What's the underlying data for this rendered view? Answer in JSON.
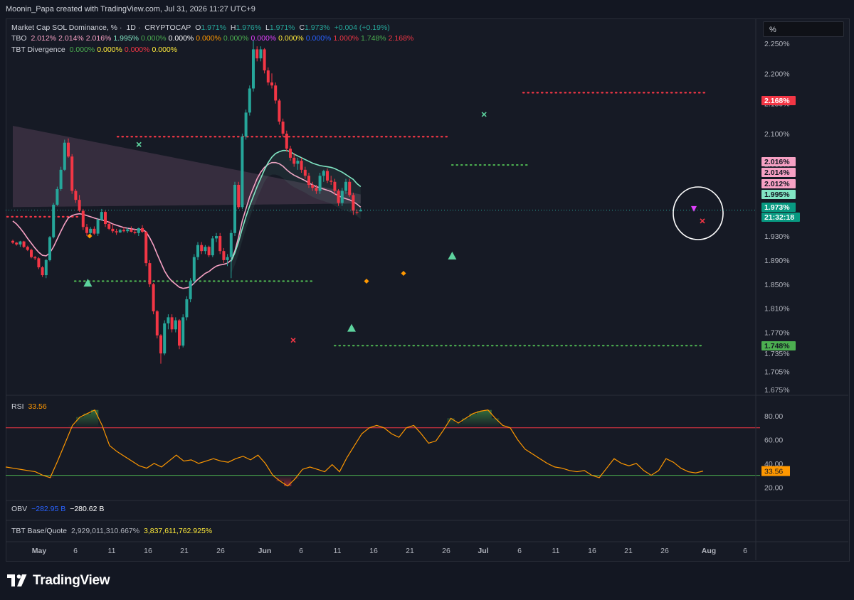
{
  "header": {
    "text": "Moonin_Papa created with TradingView.com, Jul 31, 2026 11:27 UTC+9"
  },
  "legend": {
    "main": {
      "title": "Market Cap SOL Dominance, %",
      "interval": "1D",
      "source": "CRYPTOCAP",
      "o_label": "O",
      "o": "1.971%",
      "h_label": "H",
      "h": "1.976%",
      "l_label": "L",
      "l": "1.971%",
      "c_label": "C",
      "c": "1.973%",
      "change": "+0.004 (+0.19%)"
    },
    "tbo": {
      "name": "TBO",
      "values": [
        {
          "text": "2.012%",
          "color": "#f7a1c4"
        },
        {
          "text": "2.014%",
          "color": "#f7a1c4"
        },
        {
          "text": "2.016%",
          "color": "#f7a1c4"
        },
        {
          "text": "1.995%",
          "color": "#81e6c4"
        },
        {
          "text": "0.000%",
          "color": "#4caf50"
        },
        {
          "text": "0.000%",
          "color": "#ffffff"
        },
        {
          "text": "0.000%",
          "color": "#ff9800"
        },
        {
          "text": "0.000%",
          "color": "#4caf50"
        },
        {
          "text": "0.000%",
          "color": "#e040fb"
        },
        {
          "text": "0.000%",
          "color": "#ffeb3b"
        },
        {
          "text": "0.000%",
          "color": "#2962ff"
        },
        {
          "text": "1.000%",
          "color": "#f23645"
        },
        {
          "text": "1.748%",
          "color": "#4caf50"
        },
        {
          "text": "2.168%",
          "color": "#f23645"
        }
      ]
    },
    "tbt_div": {
      "name": "TBT Divergence",
      "values": [
        {
          "text": "0.000%",
          "color": "#4caf50"
        },
        {
          "text": "0.000%",
          "color": "#ffeb3b"
        },
        {
          "text": "0.000%",
          "color": "#f23645"
        },
        {
          "text": "0.000%",
          "color": "#ffeb3b"
        }
      ]
    },
    "rsi": {
      "name": "RSI",
      "value": "33.56",
      "color": "#ff9800"
    },
    "obv": {
      "name": "OBV",
      "v1": "−282.95 B",
      "v1_color": "#2962ff",
      "v2": "−280.62 B",
      "v2_color": "#ffffff"
    },
    "tbt_bq": {
      "name": "TBT Base/Quote",
      "v1": "2,929,011,310.667%",
      "v1_color": "#b2b5be",
      "v2": "3,837,611,762.925%",
      "v2_color": "#ffeb3b"
    }
  },
  "unit_box": "%",
  "price_axis_ticks": [
    "2.250%",
    "2.200%",
    "2.150%",
    "2.100%",
    "2.050%",
    "1.930%",
    "1.890%",
    "1.850%",
    "1.810%",
    "1.770%",
    "1.735%",
    "1.705%",
    "1.675%"
  ],
  "price_axis_labels": [
    {
      "text": "2.168%",
      "bg": "#f23645",
      "fg": "#ffffff"
    },
    {
      "text": "2.016%",
      "bg": "#f7a1c4",
      "fg": "#131722"
    },
    {
      "text": "2.014%",
      "bg": "#f7a1c4",
      "fg": "#131722"
    },
    {
      "text": "2.012%",
      "bg": "#f7a1c4",
      "fg": "#131722"
    },
    {
      "text": "1.995%",
      "bg": "#81e6c4",
      "fg": "#131722"
    },
    {
      "text": "1.973%",
      "bg": "#089981",
      "fg": "#ffffff"
    },
    {
      "text": "21:32:18",
      "bg": "#089981",
      "fg": "#ffffff"
    },
    {
      "text": "1.748%",
      "bg": "#4caf50",
      "fg": "#131722"
    }
  ],
  "rsi_axis_ticks": [
    "80.00",
    "60.00",
    "40.00",
    "20.00"
  ],
  "rsi_current_label": "33.56",
  "x_axis_ticks": [
    "May",
    "6",
    "11",
    "16",
    "21",
    "26",
    "Jun",
    "6",
    "11",
    "16",
    "21",
    "26",
    "Jul",
    "6",
    "11",
    "16",
    "21",
    "26",
    "Aug",
    "6"
  ],
  "chart_data": [
    {
      "type": "candlestick",
      "title": "Market Cap SOL Dominance, % · 1D · CRYPTOCAP",
      "ylabel": "%",
      "ylim": [
        1.675,
        2.27
      ],
      "ohlc": [
        [
          1.922,
          1.924,
          1.917,
          1.919
        ],
        [
          1.919,
          1.92,
          1.914,
          1.916
        ],
        [
          1.916,
          1.922,
          1.912,
          1.921
        ],
        [
          1.921,
          1.922,
          1.91,
          1.912
        ],
        [
          1.912,
          1.914,
          1.905,
          1.907
        ],
        [
          1.907,
          1.909,
          1.893,
          1.895
        ],
        [
          1.895,
          1.897,
          1.89,
          1.893
        ],
        [
          1.893,
          1.895,
          1.875,
          1.878
        ],
        [
          1.878,
          1.88,
          1.862,
          1.865
        ],
        [
          1.865,
          1.892,
          1.86,
          1.89
        ],
        [
          1.89,
          1.93,
          1.888,
          1.928
        ],
        [
          1.928,
          1.985,
          1.926,
          1.982
        ],
        [
          1.982,
          2.012,
          1.98,
          2.008
        ],
        [
          2.008,
          2.045,
          2.005,
          2.04
        ],
        [
          2.04,
          2.09,
          2.038,
          2.085
        ],
        [
          2.085,
          2.092,
          2.06,
          2.062
        ],
        [
          2.062,
          2.066,
          2.0,
          2.005
        ],
        [
          2.005,
          2.008,
          1.985,
          1.99
        ],
        [
          1.99,
          1.998,
          1.97,
          1.972
        ],
        [
          1.972,
          1.975,
          1.94,
          1.945
        ],
        [
          1.945,
          1.95,
          1.93,
          1.935
        ],
        [
          1.935,
          1.945,
          1.928,
          1.942
        ],
        [
          1.942,
          1.946,
          1.932,
          1.934
        ],
        [
          1.934,
          1.96,
          1.93,
          1.957
        ],
        [
          1.957,
          1.975,
          1.955,
          1.97
        ],
        [
          1.97,
          1.972,
          1.945,
          1.95
        ],
        [
          1.95,
          1.955,
          1.94,
          1.942
        ],
        [
          1.942,
          1.95,
          1.935,
          1.938
        ],
        [
          1.938,
          1.942,
          1.932,
          1.936
        ],
        [
          1.936,
          1.942,
          1.935,
          1.94
        ],
        [
          1.94,
          1.945,
          1.936,
          1.938
        ],
        [
          1.938,
          1.944,
          1.935,
          1.941
        ],
        [
          1.941,
          1.946,
          1.936,
          1.937
        ],
        [
          1.937,
          1.942,
          1.933,
          1.935
        ],
        [
          1.935,
          1.944,
          1.93,
          1.943
        ],
        [
          1.943,
          1.948,
          1.935,
          1.937
        ],
        [
          1.937,
          1.938,
          1.88,
          1.885
        ],
        [
          1.885,
          1.89,
          1.845,
          1.85
        ],
        [
          1.85,
          1.852,
          1.8,
          1.805
        ],
        [
          1.805,
          1.807,
          1.76,
          1.765
        ],
        [
          1.765,
          1.767,
          1.718,
          1.735
        ],
        [
          1.735,
          1.79,
          1.732,
          1.785
        ],
        [
          1.785,
          1.8,
          1.775,
          1.795
        ],
        [
          1.795,
          1.8,
          1.77,
          1.775
        ],
        [
          1.775,
          1.795,
          1.77,
          1.79
        ],
        [
          1.79,
          1.792,
          1.742,
          1.748
        ],
        [
          1.748,
          1.8,
          1.745,
          1.795
        ],
        [
          1.795,
          1.83,
          1.79,
          1.825
        ],
        [
          1.825,
          1.86,
          1.82,
          1.855
        ],
        [
          1.855,
          1.9,
          1.85,
          1.895
        ],
        [
          1.895,
          1.92,
          1.89,
          1.915
        ],
        [
          1.915,
          1.92,
          1.9,
          1.905
        ],
        [
          1.905,
          1.915,
          1.9,
          1.912
        ],
        [
          1.912,
          1.914,
          1.895,
          1.898
        ],
        [
          1.898,
          1.93,
          1.895,
          1.926
        ],
        [
          1.926,
          1.935,
          1.92,
          1.93
        ],
        [
          1.93,
          1.935,
          1.9,
          1.905
        ],
        [
          1.905,
          1.91,
          1.885,
          1.89
        ],
        [
          1.89,
          1.9,
          1.88,
          1.895
        ],
        [
          1.895,
          1.94,
          1.86,
          1.935
        ],
        [
          1.935,
          2.02,
          1.93,
          2.015
        ],
        [
          2.015,
          2.02,
          1.975,
          1.978
        ],
        [
          1.978,
          2.1,
          1.975,
          2.095
        ],
        [
          2.095,
          2.14,
          2.09,
          2.135
        ],
        [
          2.135,
          2.18,
          2.13,
          2.175
        ],
        [
          2.175,
          2.255,
          2.17,
          2.24
        ],
        [
          2.24,
          2.245,
          2.22,
          2.225
        ],
        [
          2.225,
          2.245,
          2.22,
          2.24
        ],
        [
          2.24,
          2.242,
          2.2,
          2.205
        ],
        [
          2.205,
          2.21,
          2.18,
          2.185
        ],
        [
          2.185,
          2.2,
          2.175,
          2.18
        ],
        [
          2.18,
          2.185,
          2.15,
          2.155
        ],
        [
          2.155,
          2.158,
          2.115,
          2.12
        ],
        [
          2.12,
          2.125,
          2.095,
          2.1
        ],
        [
          2.1,
          2.105,
          2.07,
          2.075
        ],
        [
          2.075,
          2.08,
          2.055,
          2.06
        ],
        [
          2.06,
          2.068,
          2.045,
          2.05
        ],
        [
          2.05,
          2.06,
          2.04,
          2.055
        ],
        [
          2.055,
          2.06,
          2.035,
          2.04
        ],
        [
          2.04,
          2.045,
          2.025,
          2.03
        ],
        [
          2.03,
          2.035,
          2.01,
          2.015
        ],
        [
          2.015,
          2.02,
          2.005,
          2.01
        ],
        [
          2.01,
          2.015,
          2.0,
          2.005
        ],
        [
          2.005,
          2.035,
          2.0,
          2.03
        ],
        [
          2.03,
          2.04,
          2.02,
          2.038
        ],
        [
          2.038,
          2.042,
          2.018,
          2.022
        ],
        [
          2.022,
          2.03,
          2.015,
          2.02
        ],
        [
          2.02,
          2.025,
          1.998,
          2.005
        ],
        [
          2.005,
          2.008,
          1.98,
          1.985
        ],
        [
          1.985,
          2.01,
          1.98,
          2.005
        ],
        [
          2.005,
          2.025,
          2.0,
          2.02
        ],
        [
          2.02,
          2.025,
          1.995,
          1.998
        ],
        [
          1.998,
          2.002,
          1.965,
          1.972
        ],
        [
          1.97,
          1.974,
          1.966,
          1.969
        ],
        [
          1.971,
          1.976,
          1.971,
          1.973
        ]
      ],
      "series": [
        {
          "name": "TBO",
          "values": [
            1.955,
            1.95,
            1.943,
            1.935,
            1.926,
            1.918,
            1.91,
            1.903,
            1.898,
            1.897,
            1.902,
            1.912,
            1.925,
            1.938,
            1.95,
            1.96,
            1.964,
            1.966,
            1.967,
            1.966,
            1.964,
            1.962,
            1.96,
            1.958,
            1.957,
            1.955,
            1.953,
            1.95,
            1.948,
            1.946,
            1.944,
            1.943,
            1.942,
            1.941,
            1.94,
            1.941,
            1.937,
            1.927,
            1.915,
            1.9,
            1.886,
            1.872,
            1.862,
            1.855,
            1.85,
            1.845,
            1.843,
            1.844,
            1.846,
            1.852,
            1.858,
            1.863,
            1.868,
            1.871,
            1.876,
            1.88,
            1.882,
            1.883,
            1.885,
            1.89,
            1.905,
            1.928,
            1.955,
            1.975,
            1.995,
            2.01,
            2.025,
            2.036,
            2.044,
            2.049,
            2.052,
            2.052,
            2.05,
            2.046,
            2.04,
            2.035,
            2.031,
            2.028,
            2.025,
            2.022,
            2.018,
            2.015,
            2.012,
            2.01,
            2.008,
            2.006,
            2.004,
            2.0,
            1.997,
            1.994,
            1.992,
            1.99,
            1.987,
            1.983,
            1.978
          ],
          "color": "#f7a1c4"
        },
        {
          "name": "",
          "values": [
            null,
            null,
            null,
            null,
            null,
            null,
            null,
            null,
            null,
            null,
            null,
            null,
            null,
            null,
            null,
            null,
            null,
            null,
            null,
            null,
            null,
            null,
            null,
            null,
            null,
            null,
            null,
            null,
            null,
            null,
            null,
            null,
            null,
            null,
            null,
            null,
            null,
            null,
            null,
            null,
            null,
            null,
            null,
            null,
            null,
            null,
            null,
            null,
            null,
            null,
            null,
            null,
            null,
            null,
            null,
            null,
            null,
            null,
            null,
            1.888,
            1.902,
            1.92,
            1.942,
            1.962,
            1.98,
            1.996,
            2.012,
            2.026,
            2.04,
            2.052,
            2.061,
            2.067,
            2.07,
            2.072,
            2.072,
            2.07,
            2.066,
            2.063,
            2.06,
            2.057,
            2.054,
            2.051,
            2.049,
            2.047,
            2.046,
            2.045,
            2.044,
            2.042,
            2.039,
            2.036,
            2.032,
            2.028,
            2.024,
            2.017,
            2.012
          ],
          "color": "#81e6c4"
        }
      ],
      "resistance_levels": [
        2.168,
        2.095,
        2.048,
        1.962
      ],
      "support_levels": [
        1.855,
        1.748
      ],
      "last_price": 1.973,
      "countdown": "21:32:18"
    },
    {
      "type": "line",
      "title": "RSI",
      "ylim": [
        10,
        95
      ],
      "reference_levels": [
        70,
        30
      ],
      "values": [
        37,
        36,
        35,
        34,
        33,
        30,
        28,
        42,
        57,
        72,
        79,
        82,
        85,
        72,
        55,
        50,
        46,
        42,
        38,
        36,
        40,
        37,
        42,
        47,
        42,
        43,
        40,
        42,
        44,
        42,
        41,
        44,
        46,
        43,
        47,
        40,
        30,
        25,
        21,
        27,
        35,
        37,
        35,
        33,
        39,
        33,
        45,
        55,
        65,
        70,
        72,
        70,
        65,
        62,
        70,
        72,
        65,
        57,
        59,
        68,
        78,
        74,
        78,
        82,
        84,
        85,
        78,
        72,
        70,
        60,
        52,
        48,
        44,
        40,
        37,
        36,
        34,
        33,
        34,
        30,
        28,
        36,
        44,
        40,
        38,
        40,
        34,
        30,
        34,
        44,
        41,
        36,
        33,
        32,
        33.56
      ],
      "color": "#ff9800"
    }
  ]
}
